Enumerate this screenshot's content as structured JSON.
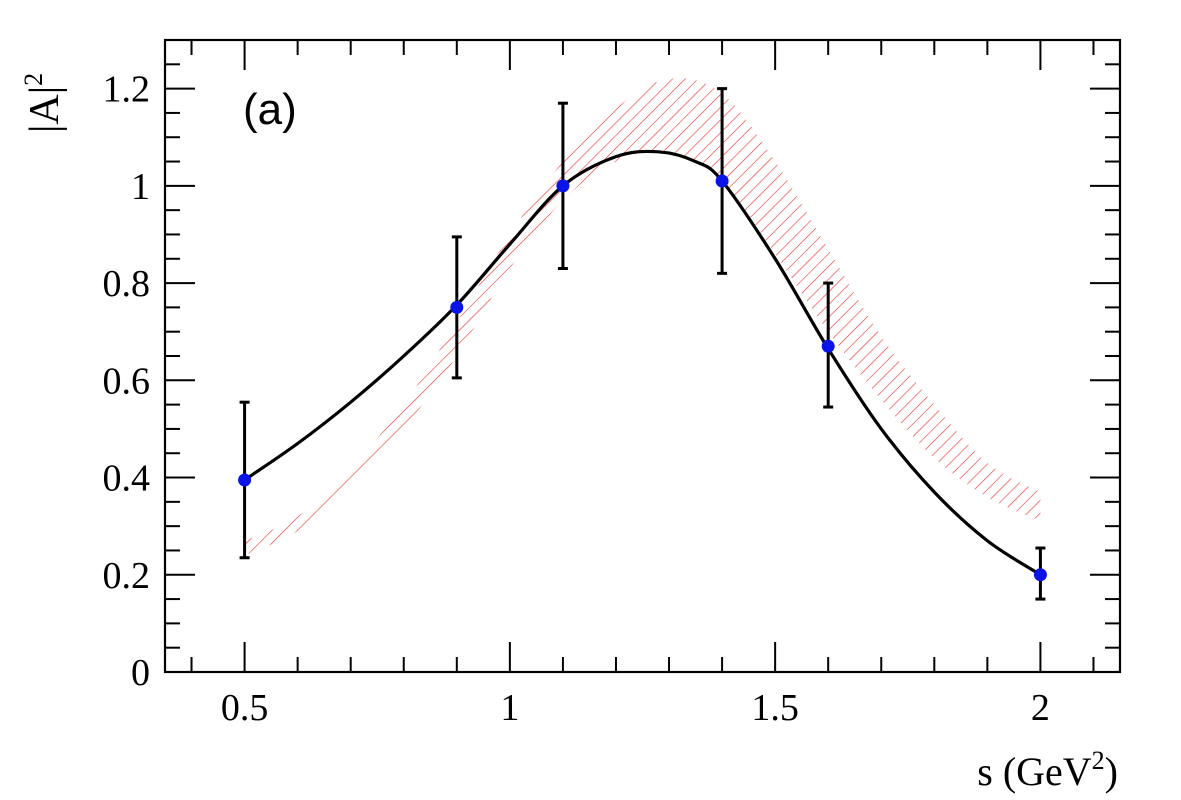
{
  "chart_data": {
    "type": "scatter",
    "panel_label": "(a)",
    "xlabel": "s (GeV",
    "xlabel_sup": "2",
    "xlabel_end": ")",
    "ylabel": "|A|",
    "ylabel_sup": "2",
    "xlim": [
      0.35,
      2.15
    ],
    "ylim": [
      0,
      1.3
    ],
    "x_ticks": [
      0.5,
      1,
      1.5,
      2
    ],
    "x_tick_labels": [
      "0.5",
      "1",
      "1.5",
      "2"
    ],
    "y_ticks": [
      0,
      0.2,
      0.4,
      0.6,
      0.8,
      1,
      1.2
    ],
    "y_tick_labels": [
      "0",
      "0.2",
      "0.4",
      "0.6",
      "0.8",
      "1",
      "1.2"
    ],
    "points": [
      {
        "x": 0.5,
        "y": 0.395,
        "err_low": 0.16,
        "err_high": 0.16
      },
      {
        "x": 0.9,
        "y": 0.75,
        "err_low": 0.145,
        "err_high": 0.145
      },
      {
        "x": 1.1,
        "y": 1.0,
        "err_low": 0.17,
        "err_high": 0.17
      },
      {
        "x": 1.4,
        "y": 1.01,
        "err_low": 0.19,
        "err_high": 0.19
      },
      {
        "x": 1.6,
        "y": 0.67,
        "err_low": 0.125,
        "err_high": 0.13
      },
      {
        "x": 2.0,
        "y": 0.2,
        "err_low": 0.05,
        "err_high": 0.055
      }
    ],
    "fit_curve": {
      "x": [
        0.5,
        0.6,
        0.7,
        0.8,
        0.9,
        1.0,
        1.1,
        1.2,
        1.28,
        1.35,
        1.4,
        1.5,
        1.6,
        1.7,
        1.8,
        1.9,
        2.0
      ],
      "y": [
        0.395,
        0.47,
        0.555,
        0.65,
        0.755,
        0.88,
        1.0,
        1.06,
        1.07,
        1.05,
        1.01,
        0.85,
        0.665,
        0.5,
        0.37,
        0.27,
        0.2
      ]
    },
    "band": {
      "x": [
        0.5,
        0.6,
        0.7,
        0.8,
        0.9,
        1.0,
        1.1,
        1.2,
        1.3,
        1.4,
        1.5,
        1.6,
        1.7,
        1.8,
        1.9,
        2.0
      ],
      "lower": [
        0.24,
        0.29,
        0.38,
        0.5,
        0.65,
        0.83,
        0.97,
        1.05,
        1.07,
        1.01,
        0.86,
        0.7,
        0.56,
        0.44,
        0.36,
        0.31
      ],
      "upper": [
        0.27,
        0.32,
        0.42,
        0.55,
        0.72,
        0.9,
        1.05,
        1.16,
        1.22,
        1.19,
        1.05,
        0.87,
        0.69,
        0.55,
        0.43,
        0.37
      ]
    },
    "colors": {
      "points": "#0a14e6",
      "curve": "#000000",
      "band": "#e8302a",
      "axis": "#000000"
    },
    "grid": false,
    "legend": "none"
  }
}
